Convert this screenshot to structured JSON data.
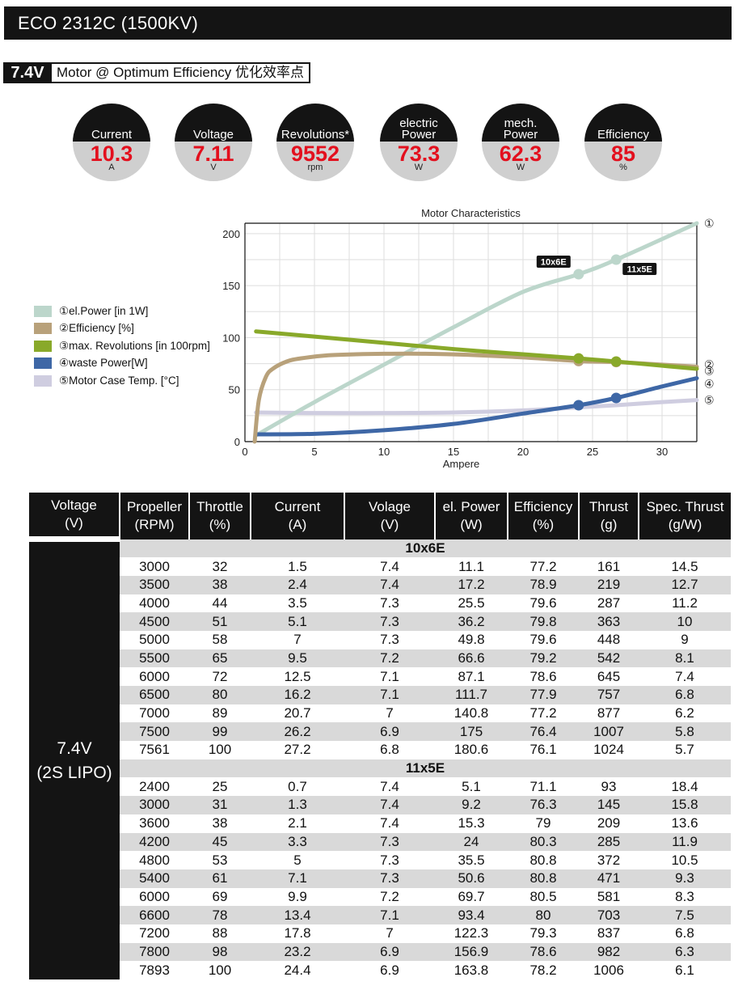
{
  "header": {
    "title": "ECO 2312C (1500KV)"
  },
  "subtitle": {
    "voltage": "7.4V",
    "label": "Motor @ Optimum Efficiency  优化效率点"
  },
  "kpis": [
    {
      "name": "current",
      "label": "Current",
      "value": "10.3",
      "unit": "A"
    },
    {
      "name": "voltage",
      "label": "Voltage",
      "value": "7.11",
      "unit": "V"
    },
    {
      "name": "revolutions",
      "label": "Revolutions*",
      "value": "9552",
      "unit": "rpm"
    },
    {
      "name": "electric-power",
      "label": "electric\nPower",
      "value": "73.3",
      "unit": "W"
    },
    {
      "name": "mech-power",
      "label": "mech.\nPower",
      "value": "62.3",
      "unit": "W"
    },
    {
      "name": "efficiency",
      "label": "Efficiency",
      "value": "85",
      "unit": "%"
    }
  ],
  "chart_data": {
    "type": "line",
    "title": "Motor Characteristics",
    "xlabel": "Ampere",
    "ylabel": "",
    "xlim": [
      0,
      32.5
    ],
    "ylim": [
      0,
      210
    ],
    "xticks": [
      "0",
      "5",
      "10",
      "15",
      "20",
      "25",
      "30"
    ],
    "yticks": [
      "0",
      "50",
      "100",
      "150",
      "200"
    ],
    "grid": true,
    "legend_position": "left",
    "series": [
      {
        "name": "①el.Power [in 1W]",
        "marker": "①",
        "color": "#bcd6cb",
        "x": [
          0.8,
          5,
          10,
          15,
          20,
          24,
          26.7,
          32.5
        ],
        "y": [
          6,
          38,
          74,
          110,
          144,
          161,
          175,
          210
        ]
      },
      {
        "name": "②Efficiency [%]",
        "marker": "②",
        "color": "#b8a17a",
        "x": [
          0.7,
          1,
          1.5,
          2,
          3,
          4,
          6,
          8,
          10,
          13,
          16,
          20,
          24,
          26.7,
          30,
          32.5
        ],
        "y": [
          0,
          40,
          62,
          70,
          77,
          80,
          83,
          84,
          84.5,
          84.5,
          83.5,
          81,
          77.5,
          76.5,
          74,
          72
        ]
      },
      {
        "name": "③max. Revolutions [in 100rpm]",
        "marker": "③",
        "color": "#89a92a",
        "x": [
          0.8,
          5,
          10,
          15,
          20,
          24,
          26.7,
          30,
          32.5
        ],
        "y": [
          106,
          101,
          95,
          89,
          84,
          80,
          77,
          73,
          70
        ]
      },
      {
        "name": "④waste Power[W]",
        "marker": "④",
        "color": "#3e67a6",
        "x": [
          0.8,
          5,
          10,
          15,
          20,
          24,
          26.7,
          30,
          32.5
        ],
        "y": [
          7,
          7.5,
          11,
          17,
          27,
          35,
          42,
          53,
          61
        ]
      },
      {
        "name": "⑤Motor Case Temp. [°C]",
        "marker": "⑤",
        "color": "#cfcde0",
        "x": [
          0.8,
          5,
          10,
          15,
          20,
          24,
          26.7,
          30,
          32.5
        ],
        "y": [
          28,
          27.5,
          27.5,
          28,
          30,
          33,
          35,
          38,
          40
        ]
      }
    ],
    "annotations": [
      {
        "text": "10x6E",
        "x": 24,
        "y": 161
      },
      {
        "text": "11x5E",
        "x": 26.7,
        "y": 175
      }
    ],
    "operating_points": [
      {
        "x": 24,
        "values": [
          161,
          77.5,
          80,
          35
        ]
      },
      {
        "x": 26.7,
        "values": [
          175,
          76.5,
          77,
          42
        ]
      }
    ]
  },
  "table": {
    "headers": [
      [
        "Voltage",
        "(V)"
      ],
      [
        "Propeller",
        "(RPM)"
      ],
      [
        "Throttle",
        "(%)"
      ],
      [
        "Current",
        "(A)"
      ],
      [
        "Volage",
        "(V)"
      ],
      [
        "el. Power",
        "(W)"
      ],
      [
        "Efficiency",
        "(%)"
      ],
      [
        "Thrust",
        "(g)"
      ],
      [
        "Spec. Thrust",
        "(g/W)"
      ]
    ],
    "voltage_label": [
      "7.4V",
      "(2S LIPO)"
    ],
    "groups": [
      {
        "name": "10x6E",
        "rows": [
          [
            "3000",
            "32",
            "1.5",
            "7.4",
            "11.1",
            "77.2",
            "161",
            "14.5"
          ],
          [
            "3500",
            "38",
            "2.4",
            "7.4",
            "17.2",
            "78.9",
            "219",
            "12.7"
          ],
          [
            "4000",
            "44",
            "3.5",
            "7.3",
            "25.5",
            "79.6",
            "287",
            "11.2"
          ],
          [
            "4500",
            "51",
            "5.1",
            "7.3",
            "36.2",
            "79.8",
            "363",
            "10"
          ],
          [
            "5000",
            "58",
            "7",
            "7.3",
            "49.8",
            "79.6",
            "448",
            "9"
          ],
          [
            "5500",
            "65",
            "9.5",
            "7.2",
            "66.6",
            "79.2",
            "542",
            "8.1"
          ],
          [
            "6000",
            "72",
            "12.5",
            "7.1",
            "87.1",
            "78.6",
            "645",
            "7.4"
          ],
          [
            "6500",
            "80",
            "16.2",
            "7.1",
            "111.7",
            "77.9",
            "757",
            "6.8"
          ],
          [
            "7000",
            "89",
            "20.7",
            "7",
            "140.8",
            "77.2",
            "877",
            "6.2"
          ],
          [
            "7500",
            "99",
            "26.2",
            "6.9",
            "175",
            "76.4",
            "1007",
            "5.8"
          ],
          [
            "7561",
            "100",
            "27.2",
            "6.8",
            "180.6",
            "76.1",
            "1024",
            "5.7"
          ]
        ]
      },
      {
        "name": "11x5E",
        "rows": [
          [
            "2400",
            "25",
            "0.7",
            "7.4",
            "5.1",
            "71.1",
            "93",
            "18.4"
          ],
          [
            "3000",
            "31",
            "1.3",
            "7.4",
            "9.2",
            "76.3",
            "145",
            "15.8"
          ],
          [
            "3600",
            "38",
            "2.1",
            "7.4",
            "15.3",
            "79",
            "209",
            "13.6"
          ],
          [
            "4200",
            "45",
            "3.3",
            "7.3",
            "24",
            "80.3",
            "285",
            "11.9"
          ],
          [
            "4800",
            "53",
            "5",
            "7.3",
            "35.5",
            "80.8",
            "372",
            "10.5"
          ],
          [
            "5400",
            "61",
            "7.1",
            "7.3",
            "50.6",
            "80.8",
            "471",
            "9.3"
          ],
          [
            "6000",
            "69",
            "9.9",
            "7.2",
            "69.7",
            "80.5",
            "581",
            "8.3"
          ],
          [
            "6600",
            "78",
            "13.4",
            "7.1",
            "93.4",
            "80",
            "703",
            "7.5"
          ],
          [
            "7200",
            "88",
            "17.8",
            "7",
            "122.3",
            "79.3",
            "837",
            "6.8"
          ],
          [
            "7800",
            "98",
            "23.2",
            "6.9",
            "156.9",
            "78.6",
            "982",
            "6.3"
          ],
          [
            "7893",
            "100",
            "24.4",
            "6.9",
            "163.8",
            "78.2",
            "1006",
            "6.1"
          ]
        ]
      }
    ]
  }
}
